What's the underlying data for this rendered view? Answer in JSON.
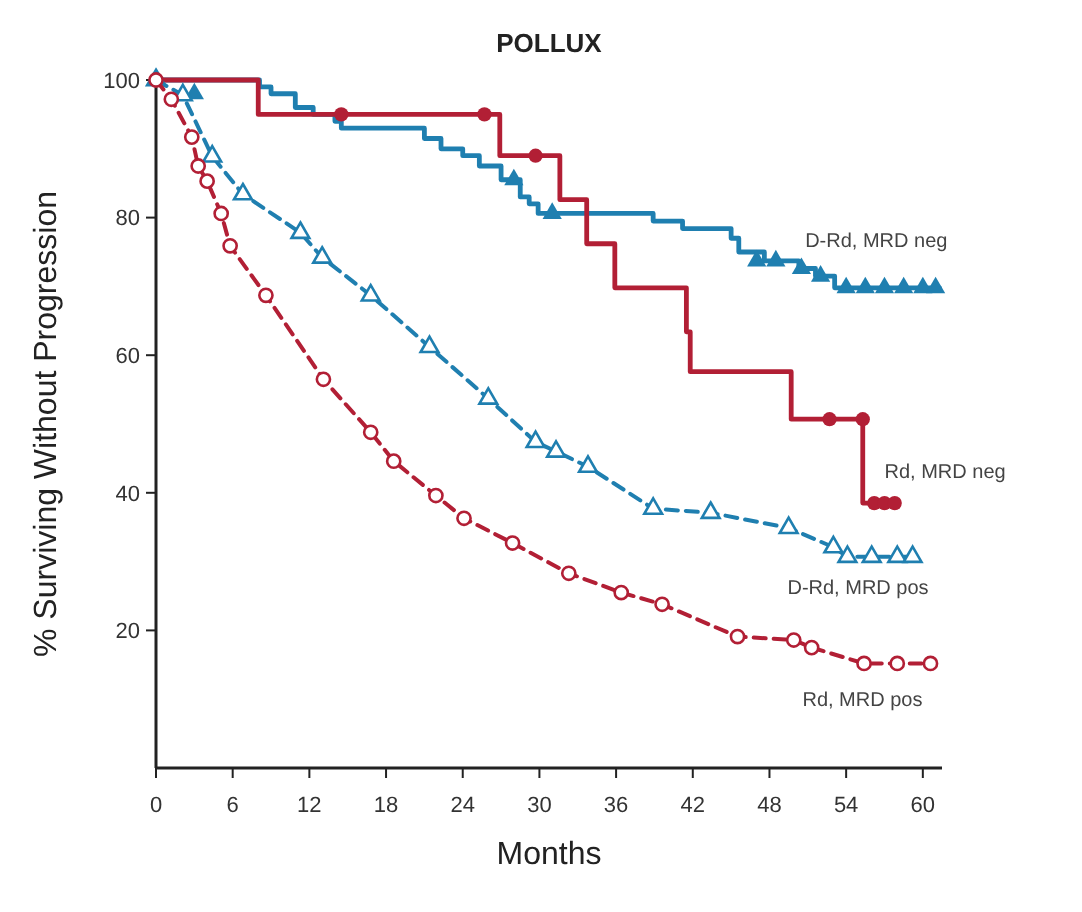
{
  "chart_data": {
    "type": "step",
    "title": "POLLUX",
    "xlabel": "Months",
    "ylabel": "% Surviving Without Progression",
    "xlim": [
      0,
      61.5
    ],
    "ylim": [
      0,
      100
    ],
    "xticks": [
      0,
      6,
      12,
      18,
      24,
      30,
      36,
      42,
      48,
      54,
      60
    ],
    "yticks": [
      20,
      40,
      60,
      80,
      100
    ],
    "grid": false,
    "legend": false,
    "series": [
      {
        "name": "D-Rd, MRD neg",
        "color": "#1f7fb0",
        "marker": "none",
        "line_style": "solid",
        "x": [
          0,
          8.1,
          9,
          10.9,
          12.3,
          14,
          14.5,
          21,
          22.3,
          24,
          25.3,
          27,
          28.5,
          29.2,
          29.9,
          38.9,
          41.2,
          45,
          45.6,
          47.6,
          50.3,
          51.6,
          53.1,
          61.3
        ],
        "values": [
          100,
          99,
          98,
          96,
          95,
          94,
          93,
          91.5,
          90,
          89,
          87.5,
          85.5,
          83,
          82,
          80.6,
          79.5,
          78.4,
          77,
          75,
          73.7,
          72.6,
          71.5,
          69.8,
          69.8
        ]
      },
      {
        "type": "scatter",
        "color": "#1f7fb0",
        "marker": "triangle",
        "x": [
          3,
          28,
          31,
          47,
          48.5,
          50.5,
          52,
          54,
          55.5,
          57,
          58.5,
          60,
          61
        ],
        "values": [
          98,
          85.5,
          80.6,
          73.7,
          73.7,
          72.6,
          71.5,
          69.8,
          69.8,
          69.8,
          69.8,
          69.8,
          69.8
        ]
      },
      {
        "name": "Rd, MRD neg",
        "color": "#b21f35",
        "marker": "none",
        "line_style": "solid",
        "x": [
          0,
          8,
          26.9,
          31.6,
          33.7,
          35.9,
          41.5,
          41.8,
          49.7,
          55.3,
          58.1
        ],
        "values": [
          100,
          95,
          89,
          82.6,
          76.2,
          69.8,
          63.4,
          57.6,
          50.7,
          38.5,
          38.5
        ]
      },
      {
        "type": "scatter",
        "color": "#b21f35",
        "marker": "circle",
        "x": [
          0,
          14.5,
          25.7,
          29.7,
          52.7,
          55.3,
          56.2,
          57,
          57.8
        ],
        "values": [
          100,
          95,
          95,
          89,
          50.7,
          50.7,
          38.5,
          38.5,
          38.5
        ]
      },
      {
        "type": "line",
        "name": "D-Rd, MRD pos",
        "color": "#1f7fb0",
        "marker": "triangle",
        "line_style": "dashed",
        "x": [
          0,
          2.1,
          4.4,
          6.8,
          11.3,
          13,
          16.8,
          21.4,
          26,
          29.7,
          31.3,
          33.8,
          38.9,
          43.4,
          49.5,
          53,
          54.1,
          56,
          58,
          59.2
        ],
        "values": [
          100,
          97.8,
          88.9,
          83.4,
          77.8,
          74.2,
          68.7,
          61.2,
          53.7,
          47.4,
          46,
          43.8,
          37.7,
          37.1,
          34.9,
          32.1,
          30.7,
          30.7,
          30.7,
          30.7
        ]
      },
      {
        "type": "line",
        "name": "Rd, MRD pos",
        "color": "#b21f35",
        "marker": "circle",
        "line_style": "dashed",
        "x": [
          0,
          1.2,
          2.8,
          3.3,
          4,
          5.1,
          5.8,
          8.6,
          13.1,
          16.8,
          18.6,
          21.9,
          24.1,
          27.9,
          32.3,
          36.4,
          39.6,
          45.5,
          49.9,
          51.3,
          55.4,
          58,
          60.6
        ],
        "values": [
          100,
          97.2,
          91.7,
          87.5,
          85.3,
          80.6,
          75.9,
          68.7,
          56.5,
          48.8,
          44.6,
          39.6,
          36.3,
          32.7,
          28.3,
          25.5,
          23.8,
          19.1,
          18.6,
          17.5,
          15.2,
          15.2,
          15.2
        ]
      }
    ]
  }
}
